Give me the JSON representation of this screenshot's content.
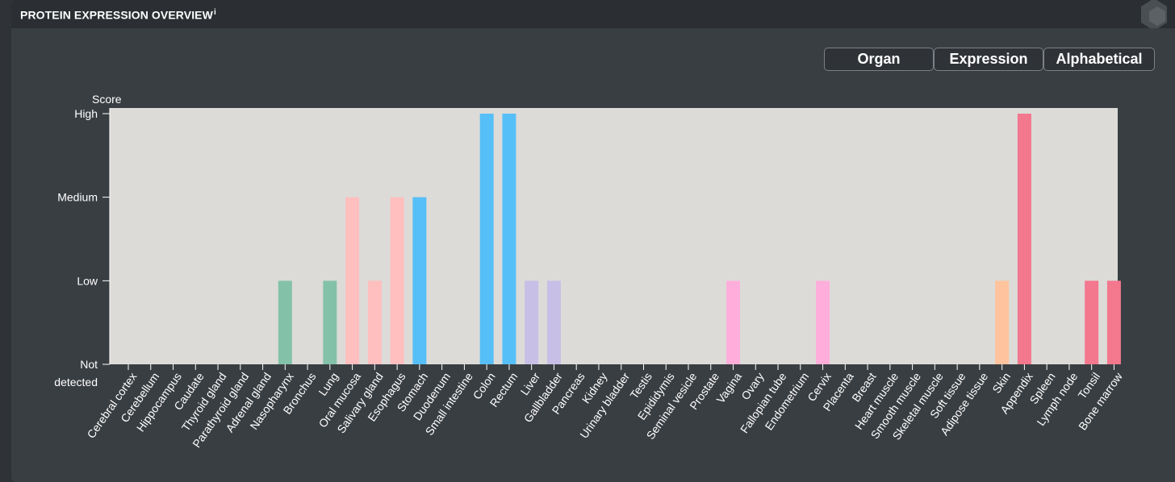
{
  "header": {
    "title": "PROTEIN EXPRESSION OVERVIEW",
    "info_mark": "i"
  },
  "sort_buttons": [
    {
      "label": "Organ"
    },
    {
      "label": "Expression"
    },
    {
      "label": "Alphabetical"
    }
  ],
  "colors": {
    "plot_background": "#dcdbd8",
    "page_background": "#393e42",
    "header_background": "#2b2f33"
  },
  "chart_data": {
    "type": "bar",
    "ylabel": "Score",
    "y_ticks": [
      "Not detected",
      "Low",
      "Medium",
      "High"
    ],
    "ylim": [
      0,
      3
    ],
    "grid": false,
    "categories": [
      "Cerebral cortex",
      "Cerebellum",
      "Hippocampus",
      "Caudate",
      "Thyroid gland",
      "Parathyroid gland",
      "Adrenal gland",
      "Nasopharynx",
      "Bronchus",
      "Lung",
      "Oral mucosa",
      "Salivary gland",
      "Esophagus",
      "Stomach",
      "Duodenum",
      "Small intestine",
      "Colon",
      "Rectum",
      "Liver",
      "Gallbladder",
      "Pancreas",
      "Kidney",
      "Urinary bladder",
      "Testis",
      "Epididymis",
      "Seminal vesicle",
      "Prostate",
      "Vagina",
      "Ovary",
      "Fallopian tube",
      "Endometrium",
      "Cervix",
      "Placenta",
      "Breast",
      "Heart muscle",
      "Smooth muscle",
      "Skeletal muscle",
      "Soft tissue",
      "Adipose tissue",
      "Skin",
      "Appendix",
      "Spleen",
      "Lymph node",
      "Tonsil",
      "Bone marrow"
    ],
    "values": [
      0,
      0,
      0,
      0,
      0,
      0,
      0,
      1,
      0,
      1,
      2,
      1,
      2,
      2,
      0,
      0,
      3,
      3,
      1,
      1,
      0,
      0,
      0,
      0,
      0,
      0,
      0,
      1,
      0,
      0,
      0,
      1,
      0,
      0,
      0,
      0,
      0,
      0,
      0,
      1,
      3,
      0,
      0,
      1,
      1
    ],
    "bar_colors": [
      "#f7cb5b",
      "#f7cb5b",
      "#f7cb5b",
      "#f7cb5b",
      "#ff8c5a",
      "#ff8c5a",
      "#ff8c5a",
      "#84c1a9",
      "#84c1a9",
      "#84c1a9",
      "#ffbfbf",
      "#ffbfbf",
      "#ffbfbf",
      "#56bff7",
      "#56bff7",
      "#56bff7",
      "#56bff7",
      "#56bff7",
      "#c8bfe6",
      "#c8bfe6",
      "#c8bfe6",
      "#f9a8a8",
      "#f9a8a8",
      "#a3a3f5",
      "#a3a3f5",
      "#a3a3f5",
      "#a3a3f5",
      "#ffaedb",
      "#ffaedb",
      "#ffaedb",
      "#ffaedb",
      "#ffaedb",
      "#ffaedb",
      "#ffaedb",
      "#c9a2d9",
      "#c9a2d9",
      "#c9a2d9",
      "#c9a2d9",
      "#c9a2d9",
      "#ffc39d",
      "#f3778d",
      "#f3778d",
      "#f3778d",
      "#f3778d",
      "#f3778d"
    ]
  }
}
